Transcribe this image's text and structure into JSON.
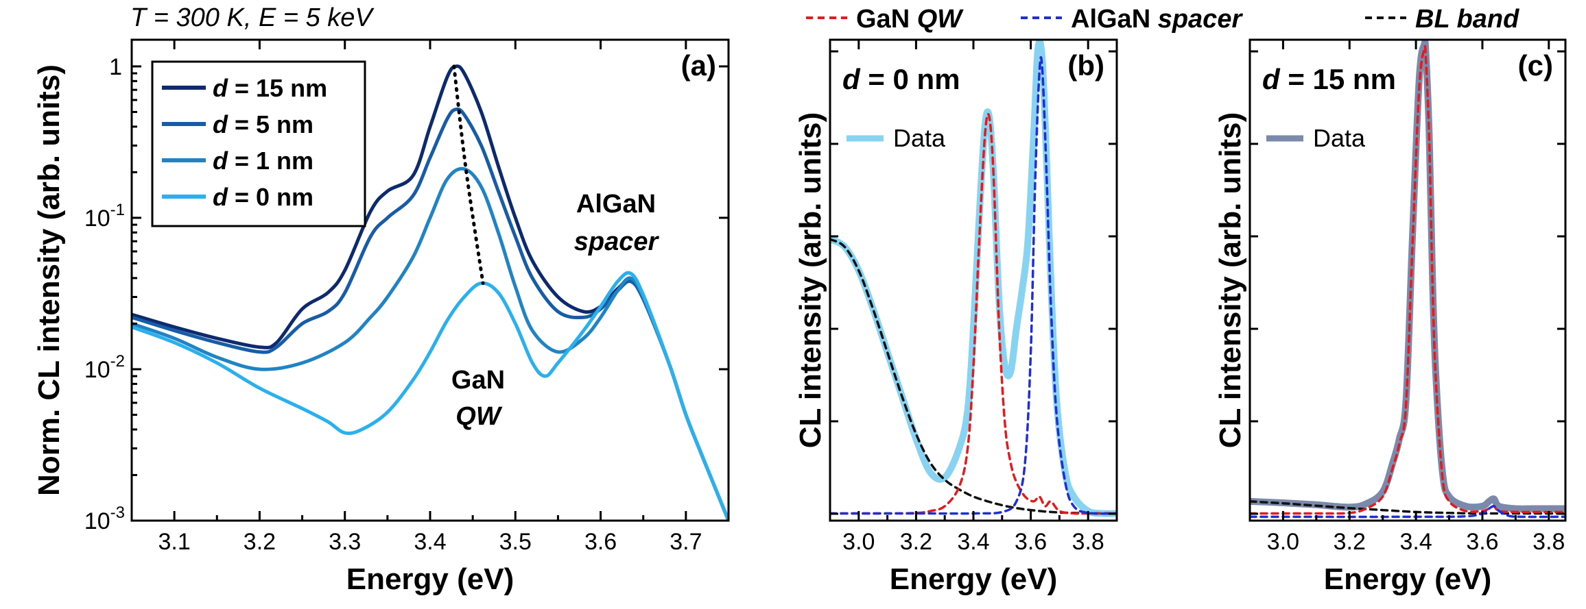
{
  "header": {
    "condition": "T = 300 K, E = 5 keV",
    "legend": [
      {
        "label": "GaN ",
        "italic": "QW",
        "color": "#e41a1c",
        "dash": true
      },
      {
        "label": "AlGaN ",
        "italic": "spacer",
        "color": "#1f2ed6",
        "dash": true
      },
      {
        "label": "",
        "italic": "BL band",
        "color": "#111111",
        "dash": true
      }
    ]
  },
  "chart_data": [
    {
      "id": "a",
      "type": "line",
      "panel_label": "(a)",
      "xlabel": "Energy (eV)",
      "ylabel": "Norm. CL intensity (arb. units)",
      "yscale": "log",
      "xlim": [
        3.05,
        3.75
      ],
      "ylim": [
        0.001,
        1.5
      ],
      "xticks": [
        "3.1",
        "3.2",
        "3.3",
        "3.4",
        "3.5",
        "3.6",
        "3.7"
      ],
      "yticks": [
        {
          "value": 1,
          "label": "1"
        },
        {
          "value": 0.1,
          "base": "10",
          "exp": "-1"
        },
        {
          "value": 0.01,
          "base": "10",
          "exp": "-2"
        },
        {
          "value": 0.001,
          "base": "10",
          "exp": "-3"
        }
      ],
      "annotations": {
        "gan_line1": "GaN",
        "gan_line2": "QW",
        "algan_line1": "AlGaN",
        "algan_line2": "spacer"
      },
      "legend_prefix": "d",
      "series": [
        {
          "name": "= 15 nm",
          "color": "#0d2a6e",
          "x": [
            3.05,
            3.1,
            3.15,
            3.2,
            3.22,
            3.25,
            3.28,
            3.3,
            3.33,
            3.35,
            3.38,
            3.4,
            3.42,
            3.43,
            3.44,
            3.46,
            3.48,
            3.5,
            3.52,
            3.55,
            3.58,
            3.6,
            3.62,
            3.635,
            3.65,
            3.68,
            3.7,
            3.72,
            3.75
          ],
          "y": [
            0.023,
            0.019,
            0.016,
            0.014,
            0.015,
            0.025,
            0.032,
            0.045,
            0.11,
            0.15,
            0.19,
            0.4,
            0.85,
            1.0,
            0.9,
            0.5,
            0.22,
            0.1,
            0.052,
            0.03,
            0.024,
            0.026,
            0.034,
            0.039,
            0.03,
            0.011,
            0.005,
            0.0026,
            0.001
          ]
        },
        {
          "name": "= 5 nm",
          "color": "#175ca6",
          "x": [
            3.05,
            3.1,
            3.15,
            3.2,
            3.22,
            3.25,
            3.28,
            3.3,
            3.33,
            3.35,
            3.38,
            3.4,
            3.42,
            3.43,
            3.44,
            3.46,
            3.48,
            3.5,
            3.52,
            3.55,
            3.58,
            3.6,
            3.62,
            3.635,
            3.65,
            3.68,
            3.7,
            3.72,
            3.75
          ],
          "y": [
            0.022,
            0.018,
            0.015,
            0.013,
            0.014,
            0.02,
            0.024,
            0.032,
            0.075,
            0.1,
            0.14,
            0.25,
            0.45,
            0.52,
            0.48,
            0.3,
            0.15,
            0.075,
            0.04,
            0.024,
            0.022,
            0.025,
            0.033,
            0.038,
            0.029,
            0.011,
            0.005,
            0.0026,
            0.001
          ]
        },
        {
          "name": "= 1 nm",
          "color": "#1f83c4",
          "x": [
            3.05,
            3.1,
            3.15,
            3.2,
            3.25,
            3.3,
            3.33,
            3.35,
            3.38,
            3.4,
            3.42,
            3.44,
            3.46,
            3.48,
            3.5,
            3.52,
            3.55,
            3.58,
            3.6,
            3.62,
            3.635,
            3.65,
            3.68,
            3.7,
            3.72,
            3.75
          ],
          "y": [
            0.02,
            0.016,
            0.012,
            0.01,
            0.011,
            0.015,
            0.022,
            0.03,
            0.055,
            0.1,
            0.18,
            0.21,
            0.16,
            0.08,
            0.035,
            0.018,
            0.013,
            0.016,
            0.022,
            0.033,
            0.04,
            0.03,
            0.011,
            0.005,
            0.0026,
            0.001
          ]
        },
        {
          "name": "= 0 nm",
          "color": "#2ab0ec",
          "x": [
            3.05,
            3.1,
            3.15,
            3.2,
            3.25,
            3.28,
            3.3,
            3.32,
            3.35,
            3.38,
            3.4,
            3.42,
            3.44,
            3.46,
            3.48,
            3.5,
            3.52,
            3.535,
            3.55,
            3.58,
            3.6,
            3.62,
            3.635,
            3.65,
            3.68,
            3.7,
            3.72,
            3.75
          ],
          "y": [
            0.019,
            0.015,
            0.011,
            0.0075,
            0.0055,
            0.0045,
            0.0038,
            0.004,
            0.0052,
            0.0085,
            0.013,
            0.021,
            0.03,
            0.037,
            0.032,
            0.02,
            0.011,
            0.009,
            0.011,
            0.018,
            0.026,
            0.038,
            0.043,
            0.031,
            0.011,
            0.005,
            0.0026,
            0.001
          ]
        }
      ],
      "peak_trace": {
        "x": [
          3.428,
          3.442,
          3.462
        ],
        "y": [
          1.0,
          0.21,
          0.037
        ],
        "style": "dotted"
      }
    },
    {
      "id": "b",
      "type": "line",
      "panel_label": "(b)",
      "inset_label_prefix": "d",
      "inset_label": "= 0 nm",
      "legend": "Data",
      "xlabel": "Energy (eV)",
      "ylabel": "CL intensity (arb. units)",
      "yscale": "linear",
      "xlim": [
        2.9,
        3.9
      ],
      "ylim": [
        0,
        1.0
      ],
      "xticks": [
        "3.0",
        "3.2",
        "3.4",
        "3.6",
        "3.8"
      ],
      "series": [
        {
          "name": "Data",
          "color": "#87d3f1",
          "style": "solid",
          "x": [
            2.9,
            2.95,
            3.0,
            3.05,
            3.1,
            3.15,
            3.2,
            3.25,
            3.3,
            3.35,
            3.38,
            3.4,
            3.42,
            3.44,
            3.455,
            3.47,
            3.49,
            3.51,
            3.53,
            3.55,
            3.57,
            3.59,
            3.61,
            3.625,
            3.64,
            3.655,
            3.67,
            3.69,
            3.72,
            3.75,
            3.8,
            3.85,
            3.9
          ],
          "y": [
            0.585,
            0.57,
            0.52,
            0.44,
            0.35,
            0.26,
            0.17,
            0.1,
            0.09,
            0.15,
            0.23,
            0.4,
            0.63,
            0.82,
            0.84,
            0.72,
            0.45,
            0.32,
            0.31,
            0.4,
            0.48,
            0.58,
            0.8,
            0.98,
            0.96,
            0.75,
            0.5,
            0.25,
            0.1,
            0.05,
            0.02,
            0.015,
            0.015
          ]
        },
        {
          "name": "BL band",
          "color": "#111111",
          "style": "dashed",
          "x": [
            2.9,
            2.95,
            3.0,
            3.05,
            3.1,
            3.15,
            3.2,
            3.25,
            3.3,
            3.35,
            3.4,
            3.45,
            3.5,
            3.55,
            3.6,
            3.65,
            3.7,
            3.75,
            3.8,
            3.85,
            3.9
          ],
          "y": [
            0.585,
            0.57,
            0.52,
            0.44,
            0.35,
            0.26,
            0.18,
            0.12,
            0.085,
            0.065,
            0.05,
            0.04,
            0.032,
            0.026,
            0.022,
            0.019,
            0.017,
            0.016,
            0.015,
            0.015,
            0.015
          ]
        },
        {
          "name": "GaN QW",
          "color": "#e41a1c",
          "style": "dashed",
          "x": [
            2.9,
            3.0,
            3.1,
            3.2,
            3.25,
            3.3,
            3.35,
            3.38,
            3.4,
            3.42,
            3.44,
            3.455,
            3.47,
            3.49,
            3.51,
            3.53,
            3.55,
            3.58,
            3.61,
            3.63,
            3.65,
            3.67,
            3.7,
            3.75,
            3.8,
            3.9
          ],
          "y": [
            0.015,
            0.015,
            0.015,
            0.016,
            0.02,
            0.03,
            0.07,
            0.15,
            0.32,
            0.58,
            0.8,
            0.84,
            0.72,
            0.4,
            0.2,
            0.12,
            0.08,
            0.05,
            0.04,
            0.05,
            0.03,
            0.04,
            0.02,
            0.015,
            0.015,
            0.015
          ]
        },
        {
          "name": "AlGaN spacer",
          "color": "#1f2ed6",
          "style": "dashed",
          "x": [
            2.9,
            3.2,
            3.4,
            3.5,
            3.55,
            3.58,
            3.6,
            3.615,
            3.63,
            3.64,
            3.655,
            3.67,
            3.69,
            3.72,
            3.75,
            3.8,
            3.9
          ],
          "y": [
            0.015,
            0.015,
            0.015,
            0.018,
            0.04,
            0.12,
            0.35,
            0.7,
            0.93,
            0.94,
            0.72,
            0.45,
            0.22,
            0.08,
            0.03,
            0.016,
            0.015
          ]
        }
      ]
    },
    {
      "id": "c",
      "type": "line",
      "panel_label": "(c)",
      "inset_label_prefix": "d",
      "inset_label": "= 15 nm",
      "legend": "Data",
      "xlabel": "Energy (eV)",
      "ylabel": "CL intensity (arb. units)",
      "yscale": "linear",
      "xlim": [
        2.9,
        3.85
      ],
      "ylim": [
        0,
        1.0
      ],
      "xticks": [
        "3.0",
        "3.2",
        "3.4",
        "3.6",
        "3.8"
      ],
      "series": [
        {
          "name": "Data",
          "color": "#7b8aab",
          "style": "solid",
          "x": [
            2.9,
            3.0,
            3.1,
            3.2,
            3.25,
            3.3,
            3.33,
            3.35,
            3.37,
            3.39,
            3.41,
            3.425,
            3.43,
            3.44,
            3.45,
            3.46,
            3.48,
            3.5,
            3.55,
            3.6,
            3.62,
            3.635,
            3.65,
            3.7,
            3.75,
            3.8,
            3.85
          ],
          "y": [
            0.04,
            0.037,
            0.033,
            0.028,
            0.035,
            0.06,
            0.12,
            0.17,
            0.25,
            0.6,
            0.92,
            0.99,
            0.97,
            0.8,
            0.5,
            0.3,
            0.1,
            0.05,
            0.03,
            0.03,
            0.04,
            0.045,
            0.03,
            0.025,
            0.025,
            0.025,
            0.025
          ]
        },
        {
          "name": "BL band",
          "color": "#111111",
          "style": "dashed",
          "x": [
            2.9,
            3.0,
            3.1,
            3.2,
            3.3,
            3.4,
            3.5,
            3.6,
            3.7,
            3.85
          ],
          "y": [
            0.04,
            0.036,
            0.031,
            0.026,
            0.022,
            0.018,
            0.016,
            0.015,
            0.015,
            0.015
          ]
        },
        {
          "name": "GaN QW",
          "color": "#e41a1c",
          "style": "dashed",
          "x": [
            2.9,
            3.1,
            3.2,
            3.25,
            3.3,
            3.33,
            3.35,
            3.37,
            3.39,
            3.41,
            3.425,
            3.43,
            3.44,
            3.45,
            3.46,
            3.48,
            3.5,
            3.55,
            3.6,
            3.62,
            3.635,
            3.65,
            3.7,
            3.85
          ],
          "y": [
            0.015,
            0.015,
            0.016,
            0.025,
            0.05,
            0.11,
            0.16,
            0.24,
            0.58,
            0.9,
            0.98,
            0.96,
            0.79,
            0.49,
            0.29,
            0.09,
            0.04,
            0.02,
            0.02,
            0.025,
            0.03,
            0.02,
            0.018,
            0.018
          ]
        },
        {
          "name": "AlGaN spacer",
          "color": "#1f2ed6",
          "style": "dashed",
          "x": [
            2.9,
            3.4,
            3.55,
            3.6,
            3.62,
            3.635,
            3.65,
            3.68,
            3.72,
            3.85
          ],
          "y": [
            0.008,
            0.008,
            0.009,
            0.015,
            0.025,
            0.03,
            0.02,
            0.01,
            0.008,
            0.008
          ]
        }
      ]
    }
  ]
}
